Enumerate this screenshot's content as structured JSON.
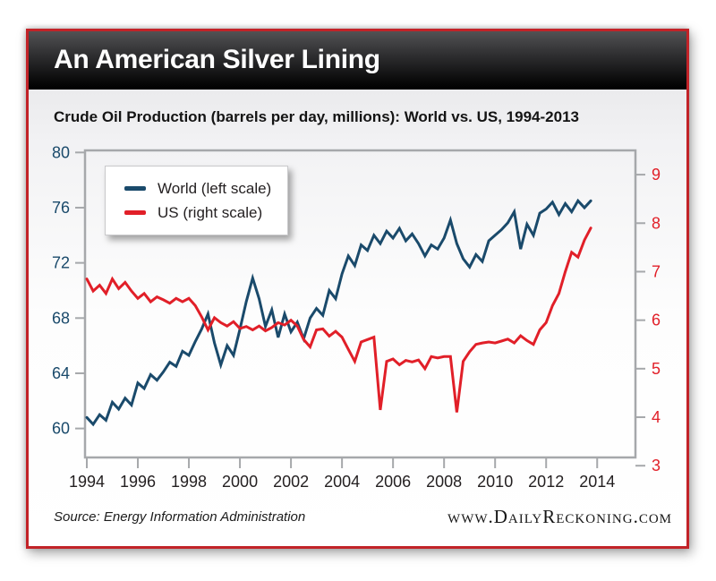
{
  "header": {
    "title": "An American Silver Lining"
  },
  "footer": {
    "source": "Source: Energy Information Administration",
    "website": "www.DailyReckoning.com"
  },
  "colors": {
    "frame_border": "#c22328",
    "titlebar_top": "#525254",
    "titlebar_bottom": "#000000",
    "axis_gray": "#a6a8ab",
    "world_blue": "#1a4a6b",
    "us_red": "#e11f28",
    "x_label": "#231f20"
  },
  "chart_data": {
    "type": "line",
    "title": "Crude Oil Production (barrels per day, millions): World vs. US, 1994-2013",
    "frequency": "quarterly",
    "x_start": 1994.0,
    "x_step": 0.25,
    "grid": false,
    "legend_position": "top-left",
    "x_axis": {
      "ticks": [
        1994,
        1996,
        1998,
        2000,
        2002,
        2004,
        2006,
        2008,
        2010,
        2012,
        2014
      ],
      "range": [
        1993.93,
        2015.5
      ]
    },
    "left_axis": {
      "ticks": [
        80,
        76,
        72,
        68,
        64,
        60
      ],
      "range": [
        57.9,
        80.15
      ],
      "label_color": "#1a4a6b"
    },
    "right_axis": {
      "ticks": [
        9,
        8,
        7,
        6,
        5,
        4,
        3
      ],
      "range": [
        3.17,
        9.5
      ],
      "label_color": "#e11f28"
    },
    "series": [
      {
        "name": "World (left scale)",
        "axis": "left",
        "color": "#1a4a6b",
        "values": [
          60.8,
          60.3,
          61.0,
          60.6,
          61.9,
          61.4,
          62.2,
          61.7,
          63.3,
          62.9,
          63.9,
          63.5,
          64.1,
          64.8,
          64.5,
          65.6,
          65.3,
          66.3,
          67.2,
          68.3,
          66.2,
          64.6,
          66.0,
          65.3,
          67.2,
          69.2,
          70.9,
          69.4,
          67.4,
          68.6,
          66.6,
          68.3,
          67.0,
          67.7,
          66.5,
          68.0,
          68.7,
          68.2,
          70.0,
          69.4,
          71.2,
          72.5,
          71.8,
          73.3,
          72.9,
          74.0,
          73.4,
          74.3,
          73.8,
          74.5,
          73.6,
          74.1,
          73.4,
          72.5,
          73.3,
          73.0,
          73.8,
          75.1,
          73.4,
          72.3,
          71.7,
          72.6,
          72.1,
          73.6,
          74.0,
          74.4,
          74.9,
          75.7,
          73.0,
          74.8,
          74.0,
          75.6,
          75.9,
          76.4,
          75.5,
          76.3,
          75.7,
          76.5,
          76.0,
          76.5
        ]
      },
      {
        "name": "US (right scale)",
        "axis": "right",
        "color": "#e11f28",
        "values": [
          6.85,
          6.6,
          6.72,
          6.55,
          6.85,
          6.65,
          6.78,
          6.6,
          6.45,
          6.55,
          6.38,
          6.48,
          6.42,
          6.35,
          6.45,
          6.38,
          6.45,
          6.3,
          6.07,
          5.8,
          6.05,
          5.95,
          5.88,
          5.97,
          5.83,
          5.87,
          5.8,
          5.88,
          5.78,
          5.85,
          5.95,
          5.9,
          6.0,
          5.88,
          5.6,
          5.45,
          5.8,
          5.82,
          5.67,
          5.77,
          5.65,
          5.4,
          5.15,
          5.55,
          5.6,
          5.65,
          4.15,
          5.15,
          5.2,
          5.08,
          5.17,
          5.14,
          5.18,
          5.0,
          5.25,
          5.22,
          5.25,
          5.25,
          4.1,
          5.15,
          5.35,
          5.5,
          5.53,
          5.55,
          5.53,
          5.57,
          5.61,
          5.53,
          5.68,
          5.58,
          5.5,
          5.8,
          5.95,
          6.3,
          6.55,
          7.0,
          7.4,
          7.3,
          7.65,
          7.9
        ]
      }
    ]
  }
}
